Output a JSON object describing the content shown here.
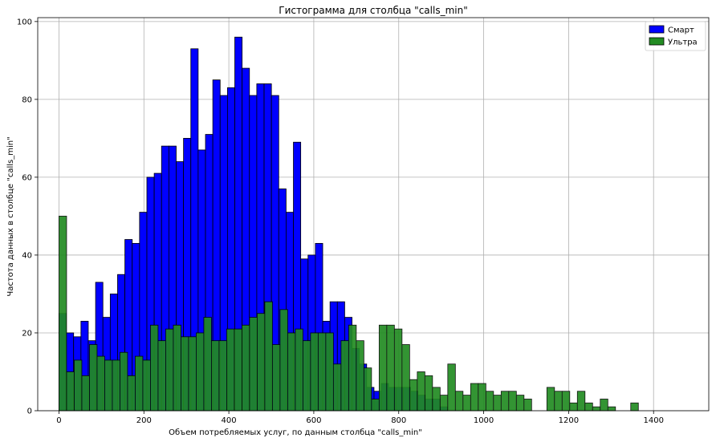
{
  "chart_data": {
    "type": "bar",
    "title": "Гистограмма для столбца \"calls_min\"",
    "xlabel": "Объем потребляемых услуг, по данным столбца \"calls_min\"",
    "ylabel": "Частота данных в столбце \"calls_min\"",
    "xlim": [
      -50,
      1530
    ],
    "ylim": [
      0,
      101
    ],
    "xticks": [
      0,
      200,
      400,
      600,
      800,
      1000,
      1200,
      1400
    ],
    "yticks": [
      0,
      20,
      40,
      60,
      80,
      100
    ],
    "grid": true,
    "legend_position": "top-right",
    "series": [
      {
        "name": "Смарт",
        "color": "#0000ff",
        "bin_start": 0,
        "bin_width": 17.25,
        "values": [
          25,
          20,
          19,
          23,
          18,
          33,
          24,
          30,
          35,
          44,
          43,
          51,
          60,
          61,
          68,
          68,
          64,
          70,
          93,
          67,
          71,
          85,
          81,
          83,
          96,
          88,
          81,
          84,
          84,
          81,
          57,
          51,
          69,
          39,
          40,
          43,
          23,
          28,
          28,
          24,
          16,
          12,
          6,
          5,
          7,
          6,
          6,
          6,
          5,
          4,
          3,
          3,
          1
        ]
      },
      {
        "name": "Ультра",
        "color": "#228b22",
        "bin_start": 0,
        "bin_width": 17.95,
        "values": [
          50,
          10,
          13,
          9,
          17,
          14,
          13,
          13,
          15,
          9,
          14,
          13,
          22,
          18,
          21,
          22,
          19,
          19,
          20,
          24,
          18,
          18,
          21,
          21,
          22,
          24,
          25,
          28,
          17,
          26,
          20,
          21,
          18,
          20,
          20,
          20,
          12,
          18,
          22,
          18,
          11,
          3,
          22,
          22,
          21,
          17,
          8,
          10,
          9,
          6,
          4,
          12,
          5,
          4,
          7,
          7,
          5,
          4,
          5,
          5,
          4,
          3,
          0,
          0,
          6,
          5,
          5,
          2,
          5,
          2,
          1,
          3,
          1,
          0,
          0,
          2
        ]
      }
    ]
  }
}
